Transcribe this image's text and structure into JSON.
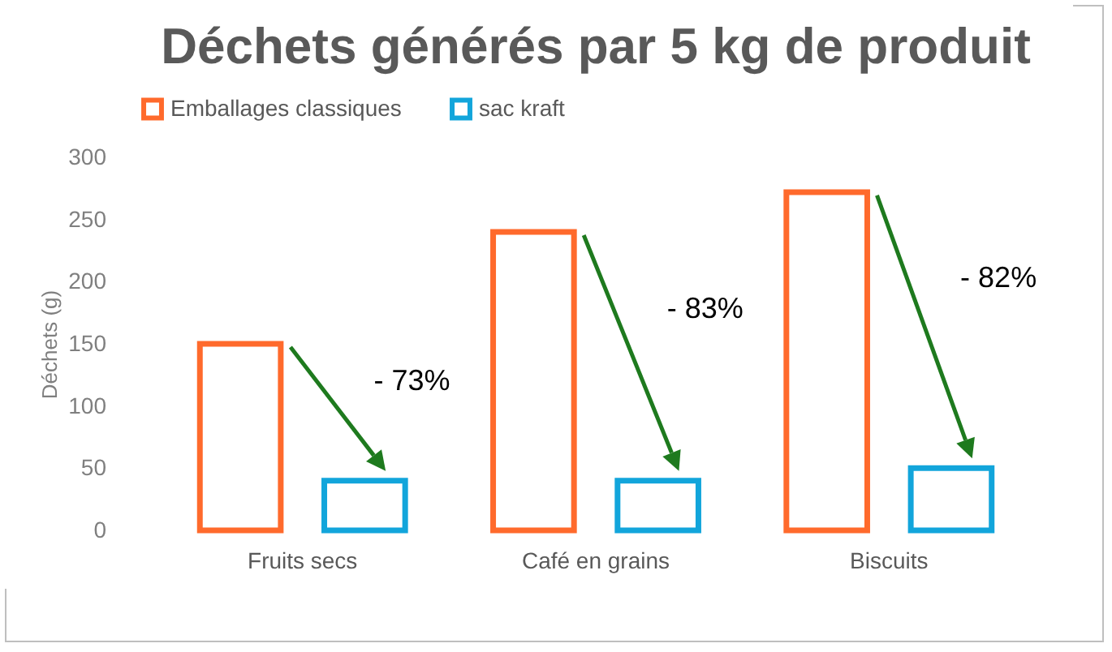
{
  "chart_data": {
    "type": "bar",
    "title": "Déchets générés par 5 kg de produit",
    "ylabel": "Déchets (g)",
    "categories": [
      "Fruits secs",
      "Café en grains",
      "Biscuits"
    ],
    "series": [
      {
        "name": "Emballages classiques",
        "color": "#ff6a2c",
        "values": [
          150,
          240,
          272
        ]
      },
      {
        "name": "sac kraft",
        "color": "#12a5db",
        "values": [
          40,
          40,
          50
        ]
      }
    ],
    "ylim": [
      0,
      300
    ],
    "yticks": [
      0,
      50,
      100,
      150,
      200,
      250,
      300
    ],
    "grid": false,
    "legend": "top",
    "annotations": [
      "- 73%",
      "- 83%",
      "- 82%"
    ]
  }
}
